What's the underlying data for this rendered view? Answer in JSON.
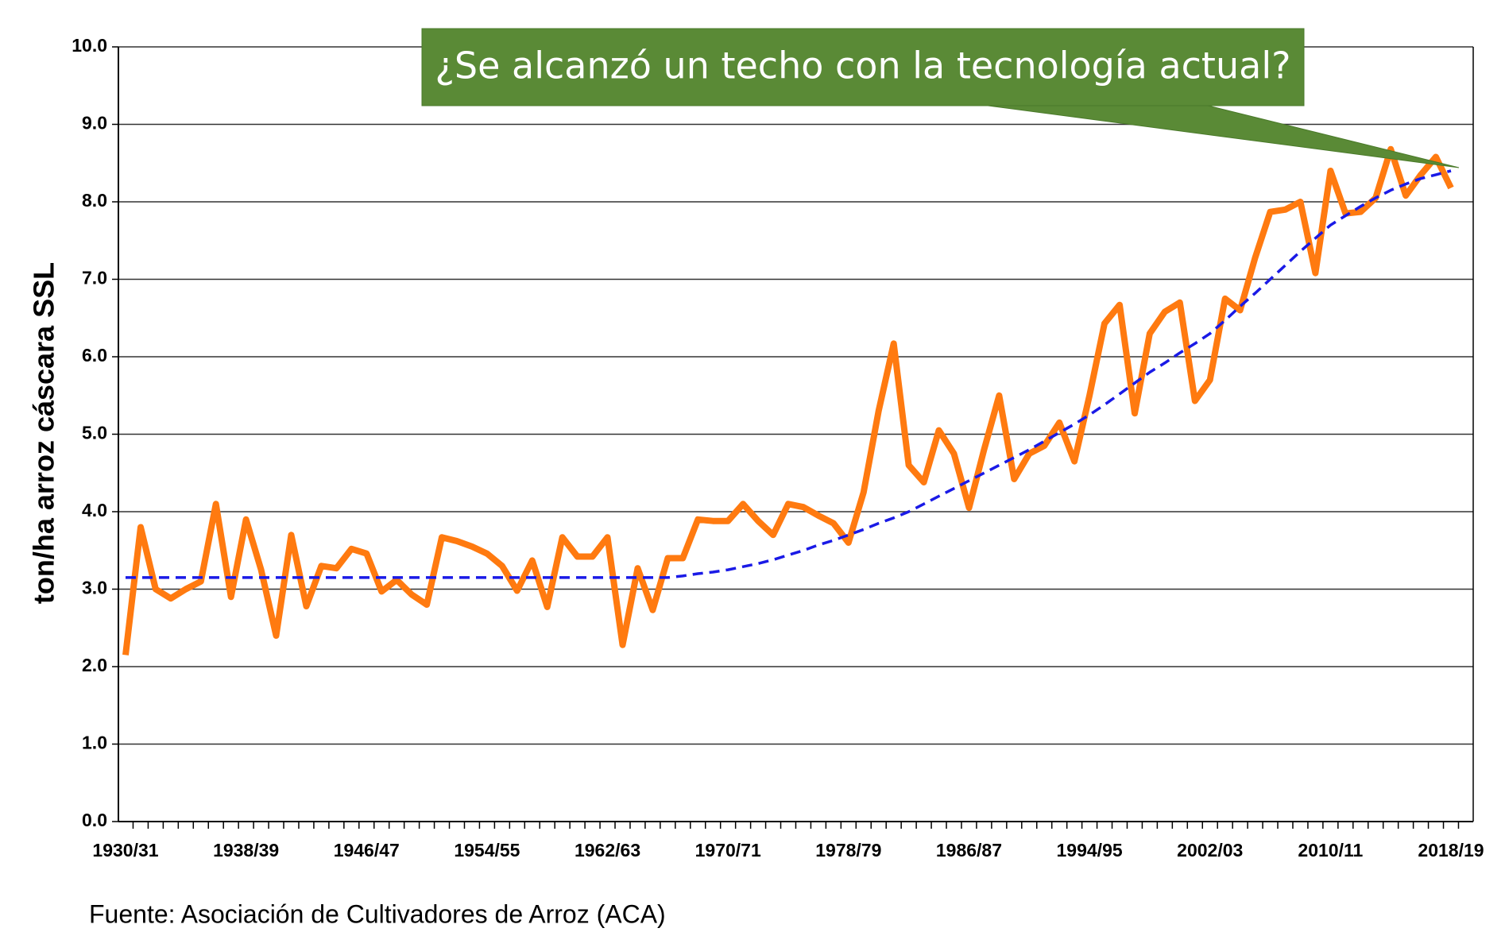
{
  "chart_data": {
    "type": "line",
    "y_label": "ton/ha arroz cáscara SSL",
    "annotation": "¿Se alcanzó un techo con la tecnología actual?",
    "source": "Fuente: Asociación de Cultivadores de Arroz (ACA)",
    "categories": [
      "1930/31",
      null,
      null,
      null,
      null,
      null,
      null,
      null,
      "1938/39",
      null,
      null,
      null,
      null,
      null,
      null,
      null,
      "1946/47",
      null,
      null,
      null,
      null,
      null,
      null,
      null,
      "1954/55",
      null,
      null,
      null,
      null,
      null,
      null,
      null,
      "1962/63",
      null,
      null,
      null,
      null,
      null,
      null,
      null,
      "1970/71",
      null,
      null,
      null,
      null,
      null,
      null,
      null,
      "1978/79",
      null,
      null,
      null,
      null,
      null,
      null,
      null,
      "1986/87",
      null,
      null,
      null,
      null,
      null,
      null,
      null,
      "1994/95",
      null,
      null,
      null,
      null,
      null,
      null,
      null,
      "2002/03",
      null,
      null,
      null,
      null,
      null,
      null,
      null,
      "2010/11",
      null,
      null,
      null,
      null,
      null,
      null,
      null,
      "2018/19"
    ],
    "series": [
      {
        "color": "#ff7a10",
        "style": "solid",
        "values": [
          2.15,
          3.8,
          3.0,
          2.88,
          3.0,
          3.1,
          4.1,
          2.9,
          3.9,
          3.25,
          2.4,
          3.7,
          2.78,
          3.3,
          3.27,
          3.52,
          3.46,
          2.97,
          3.12,
          2.93,
          2.8,
          3.67,
          3.62,
          3.55,
          3.46,
          3.3,
          2.98,
          3.37,
          2.77,
          3.67,
          3.42,
          3.42,
          3.67,
          2.28,
          3.27,
          2.73,
          3.4,
          3.4,
          3.9,
          3.88,
          3.88,
          4.1,
          3.88,
          3.7,
          4.1,
          4.06,
          3.95,
          3.85,
          3.6,
          4.25,
          5.3,
          6.17,
          4.6,
          4.38,
          5.05,
          4.75,
          4.05,
          4.8,
          5.5,
          4.42,
          4.75,
          4.85,
          5.15,
          4.65,
          5.5,
          6.43,
          6.67,
          5.27,
          6.3,
          6.58,
          6.7,
          5.43,
          5.7,
          6.75,
          6.6,
          7.28,
          7.87,
          7.9,
          8.0,
          7.08,
          8.4,
          7.85,
          7.87,
          8.05,
          8.68,
          8.08,
          8.35,
          8.58,
          8.18
        ]
      },
      {
        "color": "#1a1ae6",
        "style": "dashed",
        "values": [
          3.15,
          3.15,
          3.15,
          3.15,
          3.15,
          3.15,
          3.15,
          3.15,
          3.15,
          3.15,
          3.15,
          3.15,
          3.15,
          3.15,
          3.15,
          3.15,
          3.15,
          3.15,
          3.15,
          3.15,
          3.15,
          3.15,
          3.15,
          3.15,
          3.15,
          3.15,
          3.15,
          3.15,
          3.15,
          3.15,
          3.15,
          3.15,
          3.15,
          3.15,
          3.15,
          3.15,
          3.15,
          3.17,
          3.2,
          3.22,
          3.25,
          3.29,
          3.33,
          3.38,
          3.44,
          3.5,
          3.57,
          3.63,
          3.7,
          3.77,
          3.85,
          3.92,
          4.0,
          4.1,
          4.2,
          4.3,
          4.4,
          4.5,
          4.6,
          4.7,
          4.8,
          4.91,
          5.02,
          5.13,
          5.25,
          5.38,
          5.52,
          5.66,
          5.8,
          5.92,
          6.05,
          6.17,
          6.3,
          6.47,
          6.65,
          6.82,
          7.0,
          7.18,
          7.36,
          7.53,
          7.7,
          7.82,
          7.94,
          8.05,
          8.15,
          8.23,
          8.3,
          8.35,
          8.4
        ]
      }
    ],
    "ylim": [
      0,
      10
    ],
    "yticks": [
      {
        "value": 0,
        "label": "0.0"
      },
      {
        "value": 1,
        "label": "1.0"
      },
      {
        "value": 2,
        "label": "2.0"
      },
      {
        "value": 3,
        "label": "3.0"
      },
      {
        "value": 4,
        "label": "4.0"
      },
      {
        "value": 5,
        "label": "5.0"
      },
      {
        "value": 6,
        "label": "6.0"
      },
      {
        "value": 7,
        "label": "7.0"
      },
      {
        "value": 8,
        "label": "8.0"
      },
      {
        "value": 9,
        "label": "9.0"
      },
      {
        "value": 10,
        "label": "10.0"
      }
    ],
    "grid": true
  }
}
